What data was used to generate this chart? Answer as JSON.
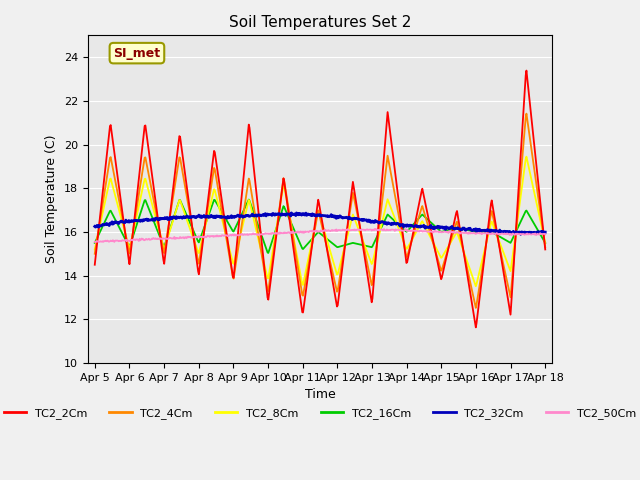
{
  "title": "Soil Temperatures Set 2",
  "xlabel": "Time",
  "ylabel": "Soil Temperature (C)",
  "ylim": [
    10,
    25
  ],
  "yticks": [
    10,
    12,
    14,
    16,
    18,
    20,
    22,
    24
  ],
  "annotation_text": "SI_met",
  "series_colors": {
    "TC2_2Cm": "#ff0000",
    "TC2_4Cm": "#ff8800",
    "TC2_8Cm": "#ffff00",
    "TC2_16Cm": "#00cc00",
    "TC2_32Cm": "#0000bb",
    "TC2_50Cm": "#ff88cc"
  },
  "xtick_labels": [
    "Apr 5",
    "Apr 6",
    "Apr 7",
    "Apr 8",
    "Apr 9",
    "Apr 10",
    "Apr 11",
    "Apr 12",
    "Apr 13",
    "Apr 14",
    "Apr 15",
    "Apr 16",
    "Apr 17",
    "Apr 18"
  ],
  "fig_width": 6.4,
  "fig_height": 4.8,
  "dpi": 100
}
